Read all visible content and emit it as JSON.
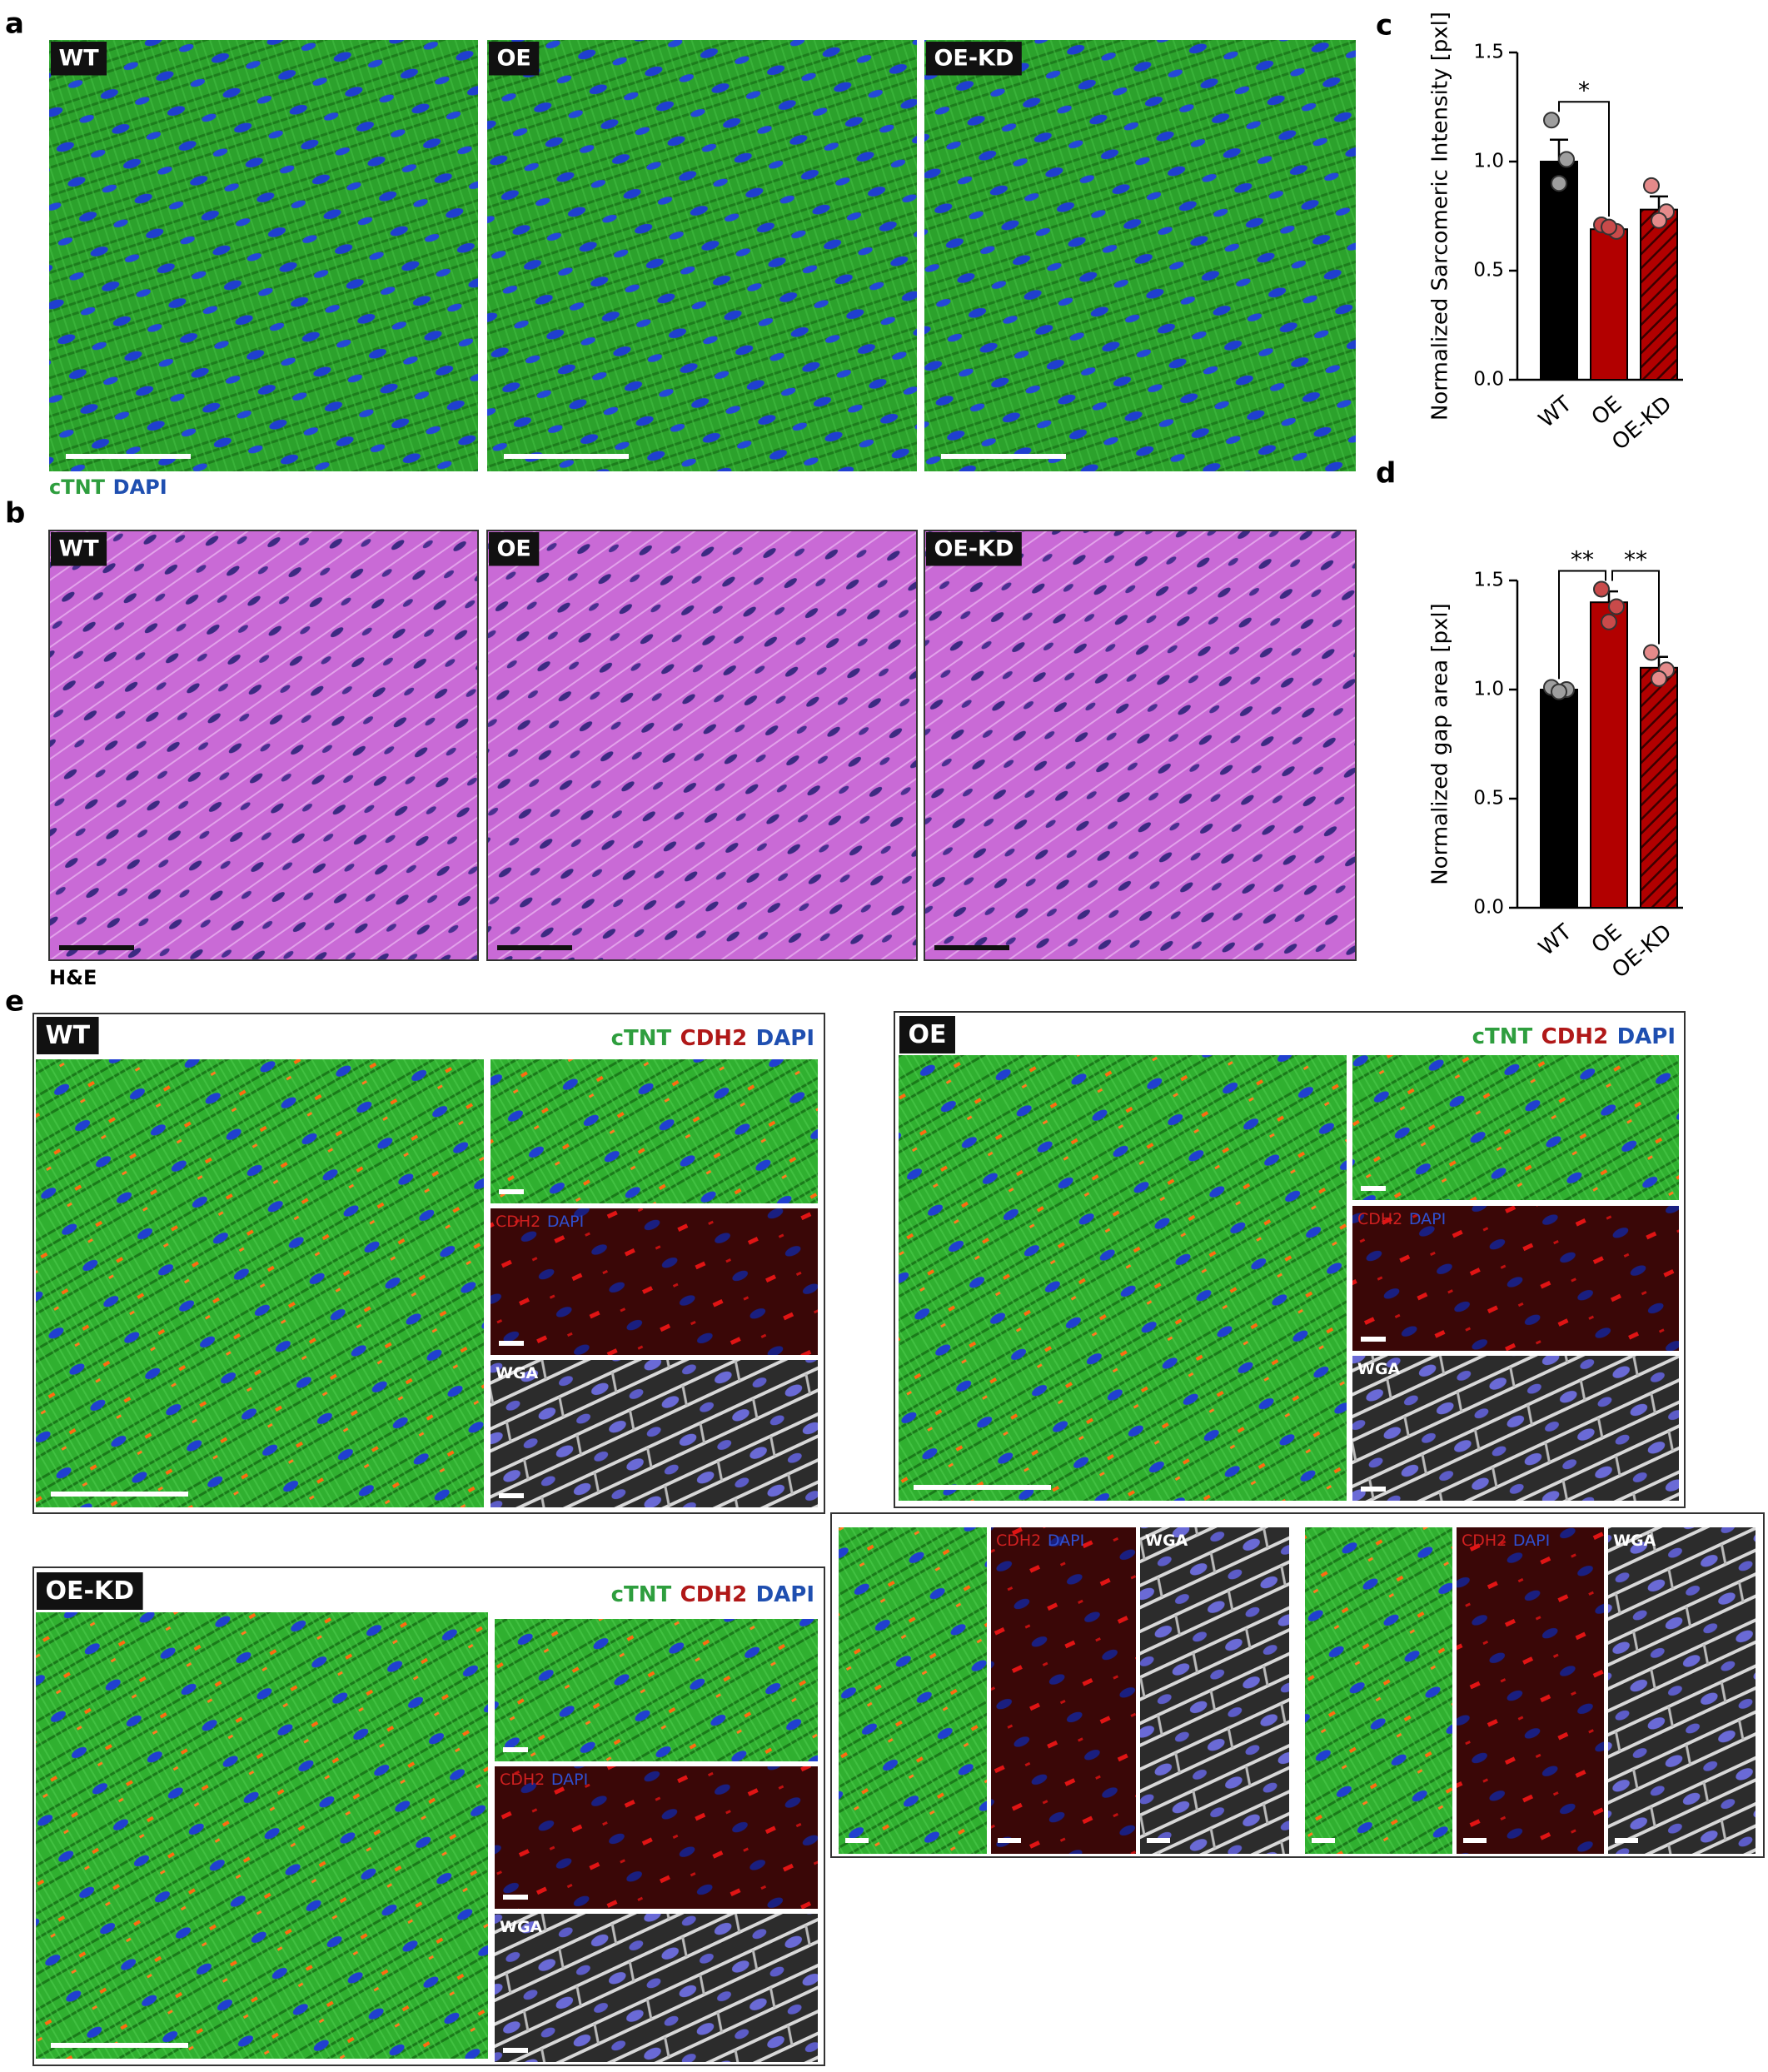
{
  "figure": {
    "panel_letters": [
      "a",
      "b",
      "c",
      "d",
      "e"
    ],
    "panel_a": {
      "labels": [
        "WT",
        "OE",
        "OE-KD"
      ],
      "stains": [
        {
          "text": "cTNT",
          "color": "#2e9e3e"
        },
        {
          "text": "DAPI",
          "color": "#1f4fb0"
        }
      ]
    },
    "panel_b": {
      "labels": [
        "WT",
        "OE",
        "OE-KD"
      ],
      "stain": "H&E"
    },
    "panel_e": {
      "groups": [
        {
          "label": "WT",
          "stains": [
            {
              "text": "cTNT",
              "color": "#2e9e3e"
            },
            {
              "text": "CDH2",
              "color": "#b01818"
            },
            {
              "text": "DAPI",
              "color": "#1f4fb0"
            }
          ],
          "inset_labels": [
            [
              {
                "text": "CDH2",
                "color": "#d02020"
              },
              {
                "text": "DAPI",
                "color": "#3050d0"
              }
            ],
            [
              {
                "text": "WGA",
                "color": "#ffffff"
              }
            ]
          ]
        },
        {
          "label": "OE",
          "stains": [
            {
              "text": "cTNT",
              "color": "#2e9e3e"
            },
            {
              "text": "CDH2",
              "color": "#b01818"
            },
            {
              "text": "DAPI",
              "color": "#1f4fb0"
            }
          ],
          "inset_labels": [
            [
              {
                "text": "CDH2",
                "color": "#d02020"
              },
              {
                "text": "DAPI",
                "color": "#3050d0"
              }
            ],
            [
              {
                "text": "WGA",
                "color": "#ffffff"
              }
            ]
          ]
        },
        {
          "label": "OE-KD",
          "stains": [
            {
              "text": "cTNT",
              "color": "#2e9e3e"
            },
            {
              "text": "CDH2",
              "color": "#b01818"
            },
            {
              "text": "DAPI",
              "color": "#1f4fb0"
            }
          ],
          "inset_labels": [
            [
              {
                "text": "CDH2",
                "color": "#d02020"
              },
              {
                "text": "DAPI",
                "color": "#3050d0"
              }
            ],
            [
              {
                "text": "WGA",
                "color": "#ffffff"
              }
            ]
          ]
        }
      ],
      "detail_labels": [
        [
          {
            "text": "CDH2",
            "color": "#d02020"
          },
          {
            "text": "DAPI",
            "color": "#3050d0"
          }
        ],
        [
          {
            "text": "WGA",
            "color": "#ffffff"
          }
        ],
        [
          {
            "text": "CDH2",
            "color": "#d02020"
          },
          {
            "text": "DAPI",
            "color": "#3050d0"
          }
        ],
        [
          {
            "text": "WGA",
            "color": "#ffffff"
          }
        ]
      ]
    }
  },
  "chart_data": [
    {
      "type": "bar",
      "y_label": "Normalized Sarcomeric Intensity [pxl]",
      "categories": [
        "WT",
        "OE",
        "OE-KD"
      ],
      "values": [
        1.0,
        0.69,
        0.78
      ],
      "errors": [
        0.1,
        0.02,
        0.06
      ],
      "points": [
        [
          1.19,
          1.01,
          0.9
        ],
        [
          0.71,
          0.68,
          0.7
        ],
        [
          0.89,
          0.77,
          0.73
        ]
      ],
      "colors": [
        "#000000",
        "#b20000",
        "#b20000"
      ],
      "hatch": [
        false,
        false,
        true
      ],
      "point_colors": [
        "#9e9e9e",
        "#c94a4a",
        "#e58a8a"
      ],
      "ylim": [
        0,
        1.5
      ],
      "yticks": [
        {
          "value": 0,
          "label": "0.0"
        },
        0.5,
        {
          "value": 1,
          "label": "1.0"
        },
        1.5
      ],
      "annotations": [
        {
          "text": "*",
          "categories": [
            0,
            1
          ]
        }
      ]
    },
    {
      "type": "bar",
      "y_label": "Normalized gap area [pxl]",
      "categories": [
        "WT",
        "OE",
        "OE-KD"
      ],
      "values": [
        1.0,
        1.4,
        1.1
      ],
      "errors": [
        0.01,
        0.05,
        0.05
      ],
      "points": [
        [
          1.01,
          1.0,
          0.99
        ],
        [
          1.46,
          1.38,
          1.31
        ],
        [
          1.17,
          1.09,
          1.05
        ]
      ],
      "colors": [
        "#000000",
        "#b20000",
        "#b20000"
      ],
      "hatch": [
        false,
        false,
        true
      ],
      "point_colors": [
        "#9e9e9e",
        "#c94a4a",
        "#e58a8a"
      ],
      "ylim": [
        0,
        1.5
      ],
      "yticks": [
        {
          "value": 0,
          "label": "0.0"
        },
        0.5,
        {
          "value": 1,
          "label": "1.0"
        },
        1.5
      ],
      "annotations": [
        {
          "text": "**",
          "categories": [
            0,
            1
          ]
        },
        {
          "text": "**",
          "categories": [
            1,
            2
          ]
        }
      ]
    }
  ]
}
